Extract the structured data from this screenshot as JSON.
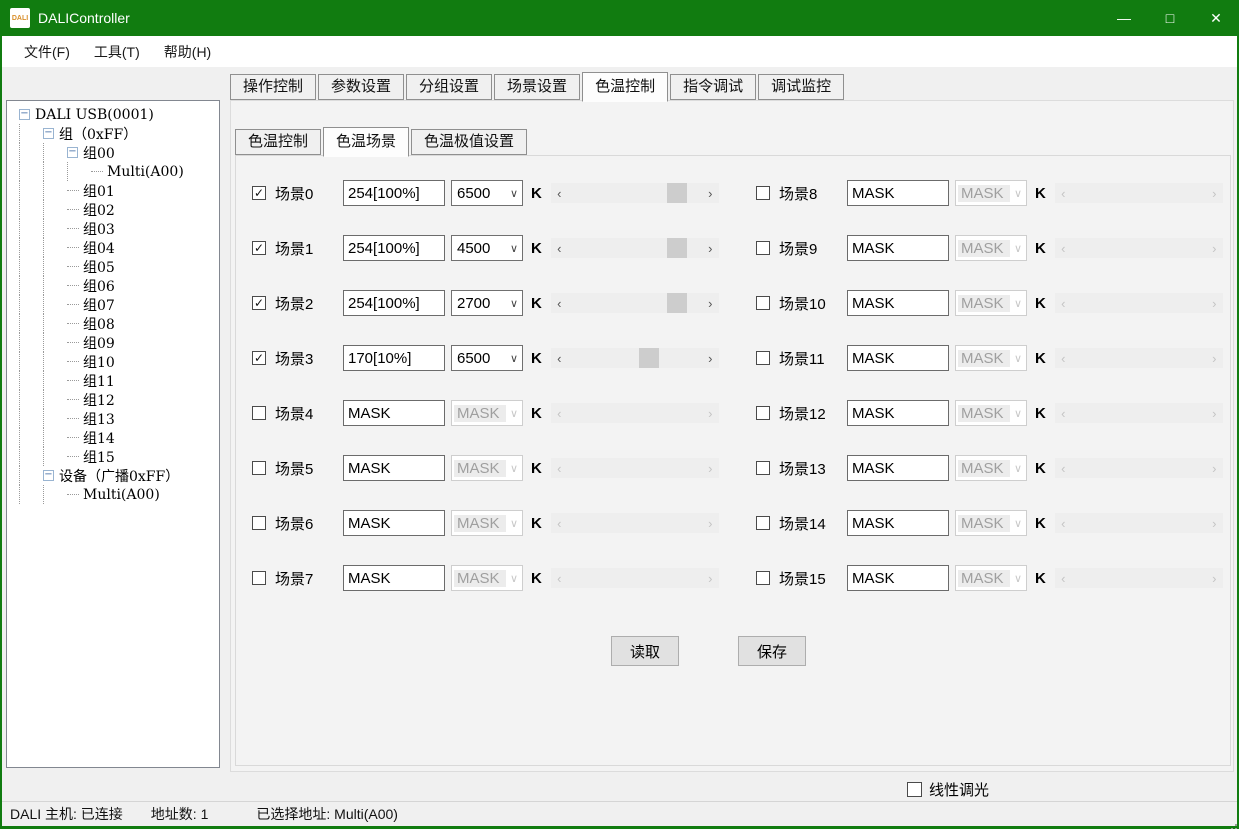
{
  "window": {
    "title": "DALIController",
    "icon_text": "DALI",
    "controls": {
      "minimize": "—",
      "maximize": "□",
      "close": "✕"
    }
  },
  "colors": {
    "titlebar_green": "#117c10",
    "panel_gray": "#f3f3f3",
    "scrollbar_thumb": "#cdcdcd"
  },
  "icons": {
    "check": "✓",
    "combo_arrow": "∨",
    "scroll_left": "‹",
    "scroll_right": "›",
    "collapse": "−"
  },
  "menu": {
    "items": [
      {
        "key": "file",
        "label": "文件(F)"
      },
      {
        "key": "tools",
        "label": "工具(T)"
      },
      {
        "key": "help",
        "label": "帮助(H)"
      }
    ]
  },
  "tree": {
    "items": [
      {
        "label": "DALI USB(0001)",
        "level": 0,
        "expander": true
      },
      {
        "label": "组（0xFF）",
        "level": 1,
        "expander": true
      },
      {
        "label": "组00",
        "level": 2,
        "expander": true
      },
      {
        "label": "Multi(A00)",
        "level": 3,
        "expander": false
      },
      {
        "label": "组01",
        "level": 2,
        "expander": false
      },
      {
        "label": "组02",
        "level": 2,
        "expander": false
      },
      {
        "label": "组03",
        "level": 2,
        "expander": false
      },
      {
        "label": "组04",
        "level": 2,
        "expander": false
      },
      {
        "label": "组05",
        "level": 2,
        "expander": false
      },
      {
        "label": "组06",
        "level": 2,
        "expander": false
      },
      {
        "label": "组07",
        "level": 2,
        "expander": false
      },
      {
        "label": "组08",
        "level": 2,
        "expander": false
      },
      {
        "label": "组09",
        "level": 2,
        "expander": false
      },
      {
        "label": "组10",
        "level": 2,
        "expander": false
      },
      {
        "label": "组11",
        "level": 2,
        "expander": false
      },
      {
        "label": "组12",
        "level": 2,
        "expander": false
      },
      {
        "label": "组13",
        "level": 2,
        "expander": false
      },
      {
        "label": "组14",
        "level": 2,
        "expander": false
      },
      {
        "label": "组15",
        "level": 2,
        "expander": false
      },
      {
        "label": "设备（广播0xFF）",
        "level": 1,
        "expander": true
      },
      {
        "label": "Multi(A00)",
        "level": 2,
        "expander": false
      }
    ]
  },
  "tabs": {
    "items": [
      {
        "key": "operation",
        "label": "操作控制",
        "selected": false
      },
      {
        "key": "parameters",
        "label": "参数设置",
        "selected": false
      },
      {
        "key": "grouping",
        "label": "分组设置",
        "selected": false
      },
      {
        "key": "scene",
        "label": "场景设置",
        "selected": false
      },
      {
        "key": "cct",
        "label": "色温控制",
        "selected": true
      },
      {
        "key": "command",
        "label": "指令调试",
        "selected": false
      },
      {
        "key": "monitor",
        "label": "调试监控",
        "selected": false
      }
    ]
  },
  "subtabs": {
    "items": [
      {
        "key": "cct-control",
        "label": "色温控制",
        "selected": false
      },
      {
        "key": "cct-scene",
        "label": "色温场景",
        "selected": true
      },
      {
        "key": "cct-limits",
        "label": "色温极值设置",
        "selected": false
      }
    ]
  },
  "scenes": {
    "kelvin_unit": "K",
    "left": [
      {
        "label": "场景0",
        "checked": true,
        "level": "254[100%]",
        "cct": "6500",
        "enabled": true,
        "thumb_pct": 87
      },
      {
        "label": "场景1",
        "checked": true,
        "level": "254[100%]",
        "cct": "4500",
        "enabled": true,
        "thumb_pct": 87
      },
      {
        "label": "场景2",
        "checked": true,
        "level": "254[100%]",
        "cct": "2700",
        "enabled": true,
        "thumb_pct": 87
      },
      {
        "label": "场景3",
        "checked": true,
        "level": "170[10%]",
        "cct": "6500",
        "enabled": true,
        "thumb_pct": 62
      },
      {
        "label": "场景4",
        "checked": false,
        "level": "MASK",
        "cct": "MASK",
        "enabled": false,
        "thumb_pct": null
      },
      {
        "label": "场景5",
        "checked": false,
        "level": "MASK",
        "cct": "MASK",
        "enabled": false,
        "thumb_pct": null
      },
      {
        "label": "场景6",
        "checked": false,
        "level": "MASK",
        "cct": "MASK",
        "enabled": false,
        "thumb_pct": null
      },
      {
        "label": "场景7",
        "checked": false,
        "level": "MASK",
        "cct": "MASK",
        "enabled": false,
        "thumb_pct": null
      }
    ],
    "right": [
      {
        "label": "场景8",
        "checked": false,
        "level": "MASK",
        "cct": "MASK",
        "enabled": false,
        "thumb_pct": null
      },
      {
        "label": "场景9",
        "checked": false,
        "level": "MASK",
        "cct": "MASK",
        "enabled": false,
        "thumb_pct": null
      },
      {
        "label": "场景10",
        "checked": false,
        "level": "MASK",
        "cct": "MASK",
        "enabled": false,
        "thumb_pct": null
      },
      {
        "label": "场景11",
        "checked": false,
        "level": "MASK",
        "cct": "MASK",
        "enabled": false,
        "thumb_pct": null
      },
      {
        "label": "场景12",
        "checked": false,
        "level": "MASK",
        "cct": "MASK",
        "enabled": false,
        "thumb_pct": null
      },
      {
        "label": "场景13",
        "checked": false,
        "level": "MASK",
        "cct": "MASK",
        "enabled": false,
        "thumb_pct": null
      },
      {
        "label": "场景14",
        "checked": false,
        "level": "MASK",
        "cct": "MASK",
        "enabled": false,
        "thumb_pct": null
      },
      {
        "label": "场景15",
        "checked": false,
        "level": "MASK",
        "cct": "MASK",
        "enabled": false,
        "thumb_pct": null
      }
    ]
  },
  "buttons": {
    "read": "读取",
    "save": "保存"
  },
  "footer": {
    "linear_dimming": "线性调光",
    "checked": false
  },
  "statusbar": {
    "host": "DALI 主机: 已连接",
    "addr_count": "地址数: 1",
    "selected_addr": "已选择地址: Multi(A00)"
  }
}
